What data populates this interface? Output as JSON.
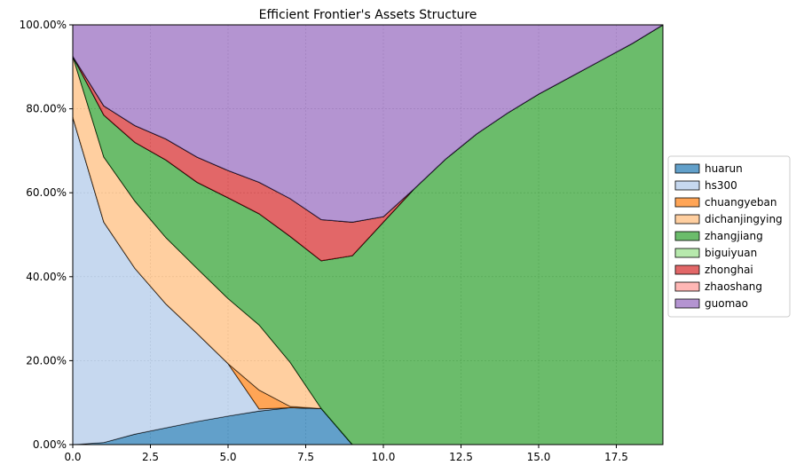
{
  "chart_data": {
    "type": "area",
    "stacked": true,
    "title": "Efficient Frontier's Assets Structure",
    "xlabel": "",
    "ylabel": "",
    "xlim": [
      0,
      19
    ],
    "ylim": [
      0,
      1
    ],
    "xticks": [
      0,
      2.5,
      5,
      7.5,
      10,
      12.5,
      15,
      17.5
    ],
    "xtick_labels": [
      "0.0",
      "2.5",
      "5.0",
      "7.5",
      "10.0",
      "12.5",
      "15.0",
      "17.5"
    ],
    "yticks": [
      0,
      0.2,
      0.4,
      0.6,
      0.8,
      1.0
    ],
    "ytick_labels": [
      "0.00%",
      "20.00%",
      "40.00%",
      "60.00%",
      "80.00%",
      "100.00%"
    ],
    "grid": true,
    "legend_position": "center-right outside",
    "x": [
      0,
      1,
      2,
      3,
      4,
      5,
      6,
      7,
      8,
      9,
      10,
      11,
      12,
      13,
      14,
      15,
      16,
      17,
      18,
      19
    ],
    "series": [
      {
        "name": "huarun",
        "color": "#1f77b4",
        "values": [
          0,
          0.005,
          0.025,
          0.04,
          0.055,
          0.068,
          0.08,
          0.088,
          0.086,
          0,
          0,
          0,
          0,
          0,
          0,
          0,
          0,
          0,
          0,
          0
        ]
      },
      {
        "name": "hs300",
        "color": "#aec7e8",
        "values": [
          0.78,
          0.525,
          0.395,
          0.295,
          0.21,
          0.125,
          0.005,
          0,
          0,
          0,
          0,
          0,
          0,
          0,
          0,
          0,
          0,
          0,
          0,
          0
        ]
      },
      {
        "name": "chuangyeban",
        "color": "#ff7f0e",
        "values": [
          0,
          0,
          0,
          0,
          0,
          0,
          0.045,
          0.003,
          0,
          0,
          0,
          0,
          0,
          0,
          0,
          0,
          0,
          0,
          0,
          0
        ]
      },
      {
        "name": "dichanjingying",
        "color": "#ffbb78",
        "values": [
          0.145,
          0.155,
          0.16,
          0.158,
          0.155,
          0.155,
          0.155,
          0.105,
          0,
          0,
          0,
          0,
          0,
          0,
          0,
          0,
          0,
          0,
          0,
          0
        ]
      },
      {
        "name": "zhangjiang",
        "color": "#2ca02c",
        "values": [
          0,
          0.1,
          0.14,
          0.185,
          0.205,
          0.24,
          0.265,
          0.3,
          0.352,
          0.45,
          0.53,
          0.61,
          0.68,
          0.74,
          0.79,
          0.835,
          0.875,
          0.915,
          0.955,
          1.0
        ]
      },
      {
        "name": "biguiyuan",
        "color": "#98df8a",
        "values": [
          0,
          0,
          0,
          0,
          0,
          0,
          0,
          0,
          0,
          0,
          0,
          0,
          0,
          0,
          0,
          0,
          0,
          0,
          0,
          0
        ]
      },
      {
        "name": "zhonghai",
        "color": "#d62728",
        "values": [
          0,
          0.022,
          0.04,
          0.05,
          0.06,
          0.065,
          0.075,
          0.09,
          0.098,
          0.08,
          0.013,
          0,
          0,
          0,
          0,
          0,
          0,
          0,
          0,
          0
        ]
      },
      {
        "name": "zhaoshang",
        "color": "#ff9896",
        "values": [
          0,
          0,
          0,
          0,
          0,
          0,
          0,
          0,
          0,
          0,
          0,
          0,
          0,
          0,
          0,
          0,
          0,
          0,
          0,
          0
        ]
      },
      {
        "name": "guomao",
        "color": "#9467bd",
        "values": [
          0.075,
          0.193,
          0.24,
          0.272,
          0.315,
          0.347,
          0.375,
          0.414,
          0.464,
          0.47,
          0.457,
          0.39,
          0.32,
          0.26,
          0.21,
          0.165,
          0.125,
          0.085,
          0.045,
          0
        ]
      }
    ]
  }
}
